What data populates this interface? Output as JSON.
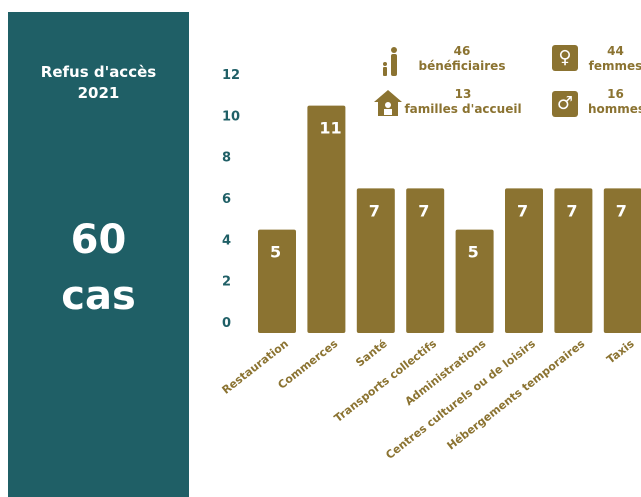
{
  "panel": {
    "title_line1": "Refus d'accès",
    "title_line2": "2021",
    "big_number": "60",
    "big_unit": "cas"
  },
  "stats": {
    "beneficiaires": {
      "value": "46",
      "label": "bénéficiaires",
      "icon": "family-icon"
    },
    "familles": {
      "value": "13",
      "label": "familles d'accueil",
      "icon": "house-icon"
    },
    "femmes": {
      "value": "44",
      "label": "femmes",
      "icon": "female-symbol-icon"
    },
    "hommes": {
      "value": "16",
      "label": "hommes",
      "icon": "male-symbol-icon"
    }
  },
  "colors": {
    "panel": "#1f5f66",
    "bar": "#8b7331",
    "axis_text": "#1f5f66"
  },
  "chart_data": {
    "type": "bar",
    "categories": [
      "Restauration",
      "Commerces",
      "Santé",
      "Transports collectifs",
      "Administrations",
      "Centres culturels ou de loisirs",
      "Hébergements temporaires",
      "Taxis"
    ],
    "values": [
      5,
      11,
      7,
      7,
      5,
      7,
      7,
      7
    ],
    "yticks": [
      0,
      2,
      4,
      6,
      8,
      10,
      12
    ],
    "ylim": [
      0,
      12
    ],
    "grid": false,
    "data_labels": true
  }
}
